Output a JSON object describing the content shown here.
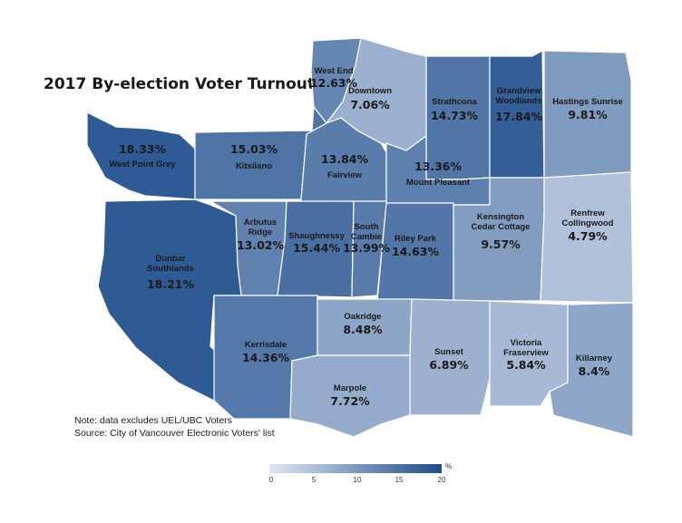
{
  "title": "2017 By-election Voter Turnout",
  "notes": [
    "Note: data excludes UEL/UBC Voters",
    "Source: City of Vancouver Electronic Voters' list"
  ],
  "legend": {
    "unit": "%",
    "ticks": [
      "0",
      "5",
      "10",
      "15",
      "20"
    ],
    "scale_min": 0,
    "scale_max": 20,
    "color_low": "#dfe6f2",
    "color_high": "#1e4d8c"
  },
  "neighbourhoods": [
    {
      "id": "west-end",
      "name": "West End",
      "value": "12.63%",
      "turnout": 12.63
    },
    {
      "id": "downtown",
      "name": "Downtown",
      "value": "7.06%",
      "turnout": 7.06
    },
    {
      "id": "strathcona",
      "name": "Strathcona",
      "value": "14.73%",
      "turnout": 14.73
    },
    {
      "id": "grandview-woodlands",
      "name": "Grandview Woodlands",
      "value": "17.84%",
      "turnout": 17.84
    },
    {
      "id": "hastings-sunrise",
      "name": "Hastings Sunrise",
      "value": "9.81%",
      "turnout": 9.81
    },
    {
      "id": "west-point-grey",
      "name": "West Point Grey",
      "value": "18.33%",
      "turnout": 18.33
    },
    {
      "id": "kitsilano",
      "name": "Kitsilano",
      "value": "15.03%",
      "turnout": 15.03
    },
    {
      "id": "fairview",
      "name": "Fairview",
      "value": "13.84%",
      "turnout": 13.84
    },
    {
      "id": "mount-pleasant",
      "name": "Mount Pleasant",
      "value": "13.36%",
      "turnout": 13.36
    },
    {
      "id": "kensington-cedar-cottage",
      "name": "Kensington Cedar Cottage",
      "value": "9.57%",
      "turnout": 9.57
    },
    {
      "id": "renfrew-collingwood",
      "name": "Renfrew Collingwood",
      "value": "4.79%",
      "turnout": 4.79
    },
    {
      "id": "dunbar-southlands",
      "name": "Dunbar Southlands",
      "value": "18.21%",
      "turnout": 18.21
    },
    {
      "id": "arbutus-ridge",
      "name": "Arbutus Ridge",
      "value": "13.02%",
      "turnout": 13.02
    },
    {
      "id": "shaughnessy",
      "name": "Shaughnessy",
      "value": "15.44%",
      "turnout": 15.44
    },
    {
      "id": "south-cambie",
      "name": "South Cambie",
      "value": "13.99%",
      "turnout": 13.99
    },
    {
      "id": "riley-park",
      "name": "Riley Park",
      "value": "14.63%",
      "turnout": 14.63
    },
    {
      "id": "kerrisdale",
      "name": "Kerrisdale",
      "value": "14.36%",
      "turnout": 14.36
    },
    {
      "id": "oakridge",
      "name": "Oakridge",
      "value": "8.48%",
      "turnout": 8.48
    },
    {
      "id": "sunset",
      "name": "Sunset",
      "value": "6.89%",
      "turnout": 6.89
    },
    {
      "id": "victoria-fraserview",
      "name": "Victoria Fraserview",
      "value": "5.84%",
      "turnout": 5.84
    },
    {
      "id": "killarney",
      "name": "Killarney",
      "value": "8.4%",
      "turnout": 8.4
    },
    {
      "id": "marpole",
      "name": "Marpole",
      "value": "7.72%",
      "turnout": 7.72
    }
  ]
}
